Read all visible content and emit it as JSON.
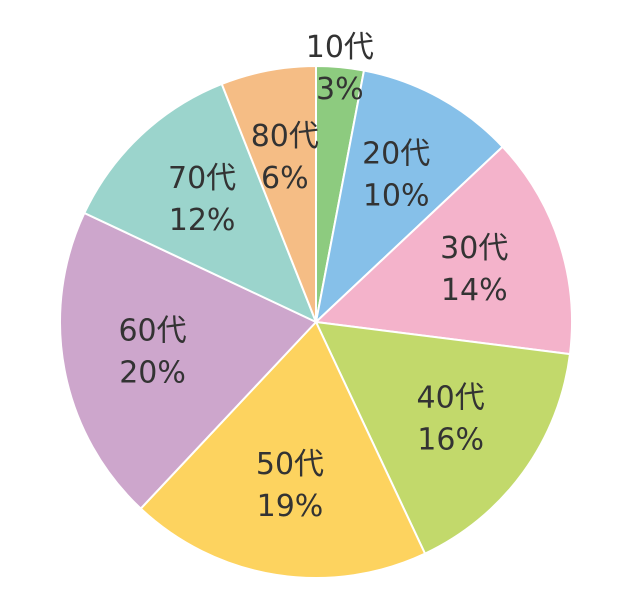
{
  "chart_data": {
    "type": "pie",
    "categories": [
      "10代",
      "20代",
      "30代",
      "40代",
      "50代",
      "60代",
      "70代",
      "80代"
    ],
    "values": [
      3,
      10,
      14,
      16,
      19,
      20,
      12,
      6
    ],
    "value_labels": [
      "3%",
      "10%",
      "14%",
      "16%",
      "19%",
      "20%",
      "12%",
      "6%"
    ],
    "colors": [
      "#8dcb7f",
      "#86c0e9",
      "#f4b3cb",
      "#c2d96b",
      "#fdd35f",
      "#cda6cc",
      "#9bd4cc",
      "#f5bd85"
    ]
  }
}
